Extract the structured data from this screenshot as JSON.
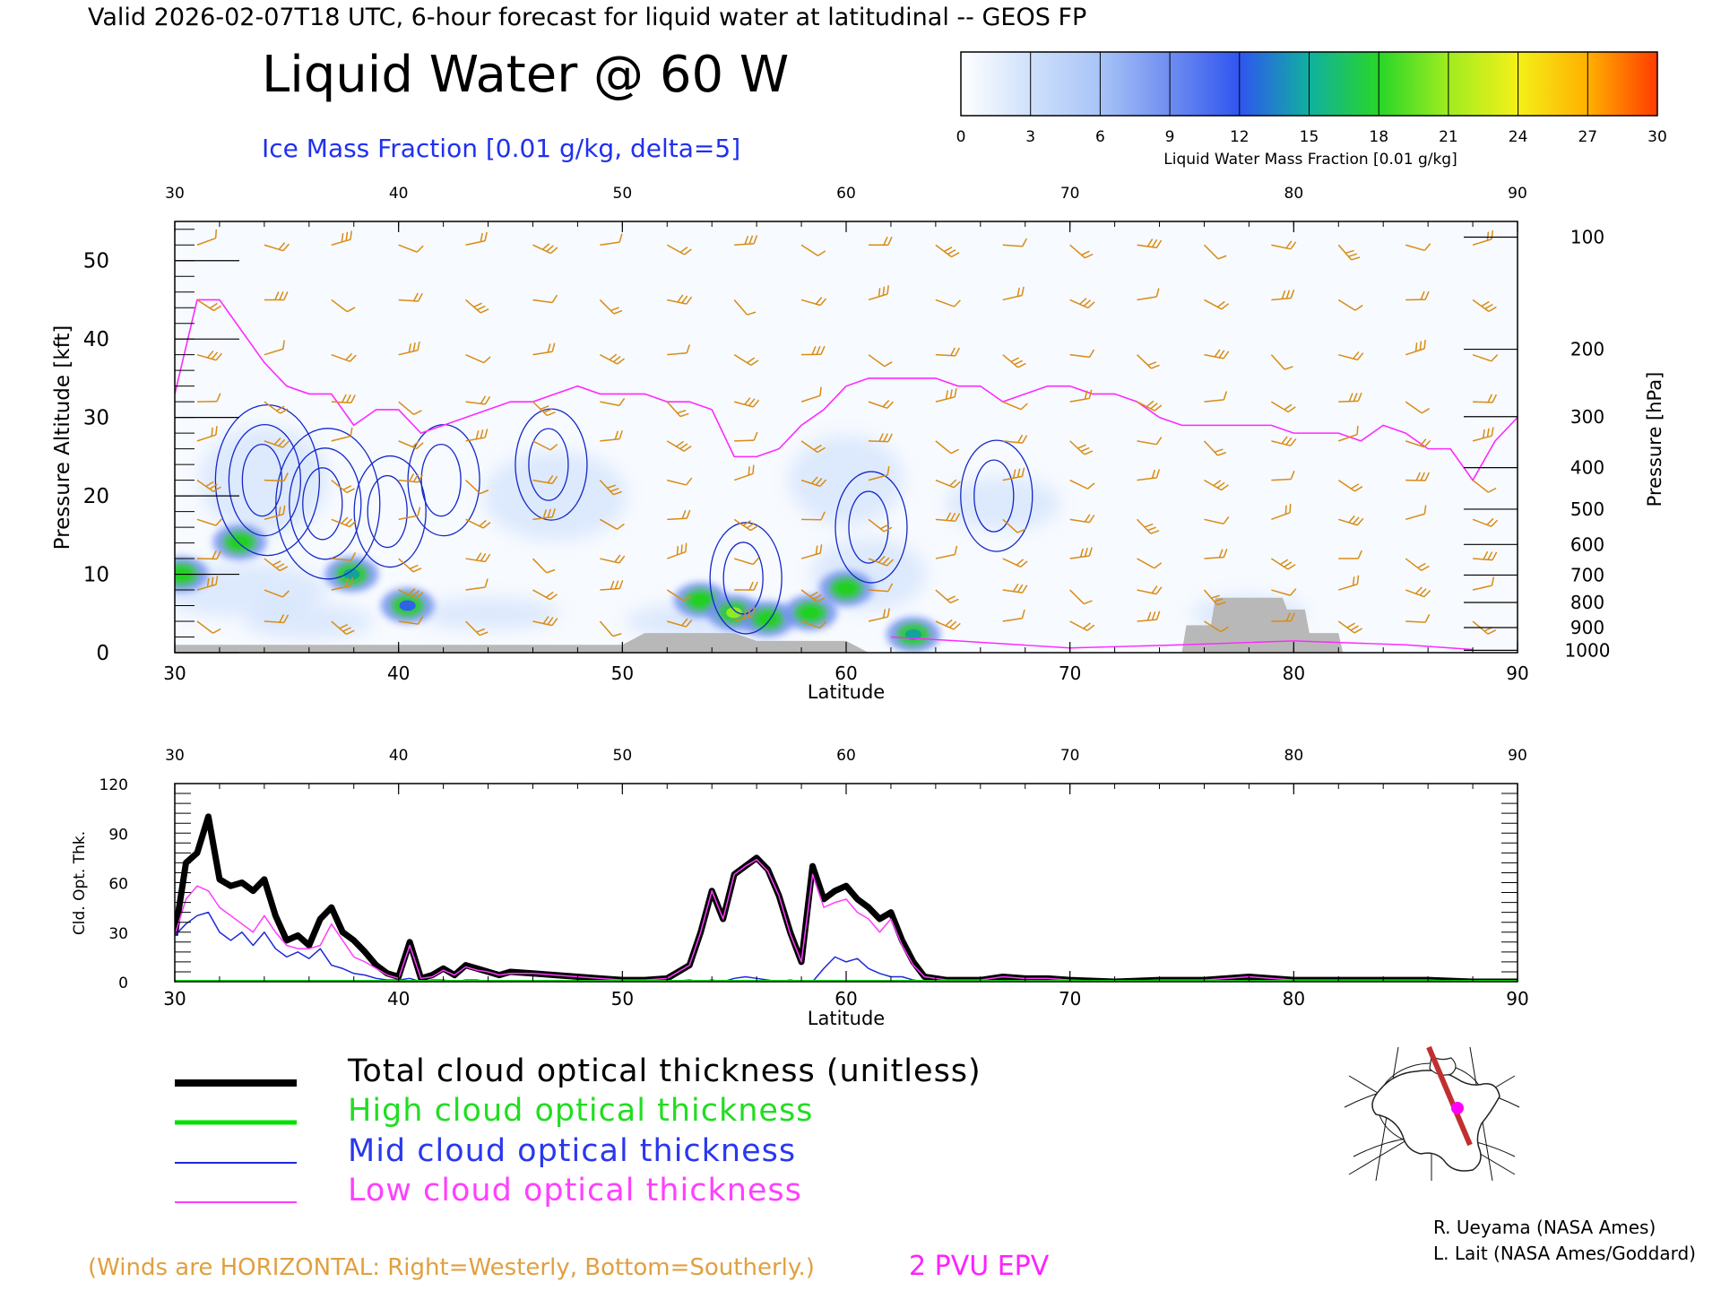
{
  "header": {
    "valid_line": "Valid 2026-02-07T18 UTC, 6-hour forecast for liquid water at latitudinal -- GEOS FP",
    "title": "Liquid Water @ 60 W",
    "subtitle": "Ice Mass Fraction [0.01 g/kg, delta=5]"
  },
  "colorbar": {
    "ticks": [
      "0",
      "3",
      "6",
      "9",
      "12",
      "15",
      "18",
      "21",
      "24",
      "27",
      "30"
    ],
    "label": "Liquid Water Mass Fraction [0.01 g/kg]",
    "colors": [
      "#f4f8ff",
      "#c8dcfb",
      "#a6c2f7",
      "#8aa4f2",
      "#2f5cf0",
      "#12a0a0",
      "#22d022",
      "#96ec22",
      "#f2f218",
      "#ffb400",
      "#ff5000"
    ]
  },
  "colors": {
    "wind_barbs": "#d98c14",
    "ice_contours": "#1428c8",
    "epv": "#ff28ff",
    "terrain": "#b8b8b8",
    "total": "#000000",
    "high": "#00e000",
    "mid": "#1e28dc",
    "low": "#ff3cff"
  },
  "chart_data": [
    {
      "type": "heatmap",
      "xlabel": "Latitude",
      "ylabel_left": "Pressure Altitude [kft]",
      "ylabel_right": "Pressure [hPa]",
      "xlim": [
        30,
        90
      ],
      "ylim": [
        0,
        55
      ],
      "x_ticks": [
        "30",
        "40",
        "50",
        "60",
        "70",
        "80",
        "90"
      ],
      "y_ticks": [
        "0",
        "10",
        "20",
        "30",
        "40",
        "50"
      ],
      "pressure_ticks": [
        {
          "label": "100",
          "kft": 53
        },
        {
          "label": "200",
          "kft": 38.7
        },
        {
          "label": "300",
          "kft": 30.1
        },
        {
          "label": "400",
          "kft": 23.6
        },
        {
          "label": "500",
          "kft": 18.3
        },
        {
          "label": "600",
          "kft": 13.8
        },
        {
          "label": "700",
          "kft": 9.9
        },
        {
          "label": "800",
          "kft": 6.4
        },
        {
          "label": "900",
          "kft": 3.2
        },
        {
          "label": "1000",
          "kft": 0.3
        }
      ],
      "liquid_water_blobs": [
        {
          "lat": 30.3,
          "kft": 10,
          "value": 19
        },
        {
          "lat": 32.9,
          "kft": 14.1,
          "value": 19
        },
        {
          "lat": 37.9,
          "kft": 10,
          "value": 16
        },
        {
          "lat": 40.4,
          "kft": 6,
          "value": 13
        },
        {
          "lat": 53.5,
          "kft": 6.7,
          "value": 18
        },
        {
          "lat": 55,
          "kft": 5.1,
          "value": 22
        },
        {
          "lat": 56.5,
          "kft": 4.3,
          "value": 19
        },
        {
          "lat": 58.4,
          "kft": 5.1,
          "value": 17
        },
        {
          "lat": 60,
          "kft": 8.2,
          "value": 19
        },
        {
          "lat": 63,
          "kft": 2.3,
          "value": 15
        }
      ],
      "ice_contour_centers": [
        {
          "lat": 33.9,
          "kft": 22
        },
        {
          "lat": 36.6,
          "kft": 19
        },
        {
          "lat": 39.5,
          "kft": 18
        },
        {
          "lat": 41.9,
          "kft": 22
        },
        {
          "lat": 46.7,
          "kft": 24
        },
        {
          "lat": 55.4,
          "kft": 9.5
        },
        {
          "lat": 61,
          "kft": 16
        },
        {
          "lat": 66.6,
          "kft": 20
        }
      ],
      "epv_2pvu_kft": [
        [
          30,
          33
        ],
        [
          31,
          45
        ],
        [
          32,
          45
        ],
        [
          33,
          41
        ],
        [
          34,
          37
        ],
        [
          35,
          34
        ],
        [
          36,
          33
        ],
        [
          37,
          33
        ],
        [
          38,
          29
        ],
        [
          39,
          31
        ],
        [
          40,
          31
        ],
        [
          41,
          28
        ],
        [
          42,
          29
        ],
        [
          43,
          30
        ],
        [
          44,
          31
        ],
        [
          45,
          32
        ],
        [
          46,
          32
        ],
        [
          47,
          33
        ],
        [
          48,
          34
        ],
        [
          49,
          33
        ],
        [
          50,
          33
        ],
        [
          51,
          33
        ],
        [
          52,
          32
        ],
        [
          53,
          32
        ],
        [
          54,
          31
        ],
        [
          55,
          25
        ],
        [
          56,
          25
        ],
        [
          57,
          26
        ],
        [
          58,
          29
        ],
        [
          59,
          31
        ],
        [
          60,
          34
        ],
        [
          61,
          35
        ],
        [
          62,
          35
        ],
        [
          63,
          35
        ],
        [
          64,
          35
        ],
        [
          65,
          34
        ],
        [
          66,
          34
        ],
        [
          67,
          32
        ],
        [
          68,
          33
        ],
        [
          69,
          34
        ],
        [
          70,
          34
        ],
        [
          71,
          33
        ],
        [
          72,
          33
        ],
        [
          73,
          32
        ],
        [
          74,
          30
        ],
        [
          75,
          29
        ],
        [
          76,
          29
        ],
        [
          77,
          29
        ],
        [
          78,
          29
        ],
        [
          79,
          29
        ],
        [
          80,
          28
        ],
        [
          81,
          28
        ],
        [
          82,
          28
        ],
        [
          83,
          27
        ],
        [
          84,
          29
        ],
        [
          85,
          28
        ],
        [
          86,
          26
        ],
        [
          87,
          26
        ],
        [
          88,
          22
        ],
        [
          89,
          27
        ],
        [
          90,
          30
        ]
      ],
      "terrain_kft": [
        [
          30,
          1
        ],
        [
          50,
          1
        ],
        [
          51,
          2.5
        ],
        [
          55,
          2.5
        ],
        [
          56,
          1.5
        ],
        [
          60,
          1.5
        ],
        [
          61,
          0
        ],
        [
          75,
          0
        ],
        [
          75.2,
          3.5
        ],
        [
          76.3,
          3.5
        ],
        [
          76.5,
          7
        ],
        [
          79.5,
          7
        ],
        [
          79.7,
          5.5
        ],
        [
          80.5,
          5.5
        ],
        [
          80.7,
          2.5
        ],
        [
          82,
          2.5
        ],
        [
          82.2,
          0
        ],
        [
          90,
          0
        ]
      ],
      "legend_note": "(Winds are HORIZONTAL: Right=Westerly, Bottom=Southerly.)",
      "epv_label": "2 PVU EPV"
    },
    {
      "type": "line",
      "xlabel": "Latitude",
      "ylabel": "Cld. Opt. Thk.",
      "xlim": [
        30,
        90
      ],
      "ylim": [
        0,
        120
      ],
      "x_ticks": [
        "30",
        "40",
        "50",
        "60",
        "70",
        "80",
        "90"
      ],
      "y_ticks": [
        "0",
        "30",
        "60",
        "90",
        "120"
      ],
      "x": [
        30,
        30.5,
        31,
        31.5,
        32,
        32.5,
        33,
        33.5,
        34,
        34.5,
        35,
        35.5,
        36,
        36.5,
        37,
        37.5,
        38,
        38.5,
        39,
        39.5,
        40,
        40.5,
        41,
        41.5,
        42,
        42.5,
        43,
        43.5,
        44,
        44.5,
        45,
        46,
        47,
        48,
        49,
        50,
        51,
        52,
        53,
        53.5,
        54,
        54.5,
        55,
        55.5,
        56,
        56.5,
        57,
        57.5,
        58,
        58.5,
        59,
        59.5,
        60,
        60.5,
        61,
        61.5,
        62,
        62.5,
        63,
        63.5,
        64,
        64.5,
        65,
        66,
        67,
        68,
        69,
        70,
        72,
        74,
        76,
        78,
        80,
        82,
        84,
        86,
        88,
        90
      ],
      "series": [
        {
          "name": "Total cloud optical thickness (unitless)",
          "values": [
            28,
            72,
            78,
            100,
            62,
            58,
            60,
            55,
            62,
            40,
            25,
            28,
            22,
            38,
            45,
            30,
            25,
            18,
            10,
            5,
            3,
            24,
            2,
            4,
            8,
            4,
            10,
            8,
            6,
            4,
            6,
            5,
            4,
            3,
            2,
            1,
            1,
            2,
            10,
            30,
            55,
            38,
            65,
            70,
            75,
            68,
            52,
            30,
            12,
            70,
            50,
            55,
            58,
            50,
            45,
            38,
            42,
            25,
            12,
            3,
            2,
            1,
            1,
            1,
            3,
            2,
            2,
            1,
            0,
            1,
            1,
            3,
            1,
            1,
            1,
            1,
            0,
            0
          ]
        },
        {
          "name": "High cloud optical thickness",
          "values": [
            0,
            0,
            0,
            0,
            0,
            0,
            0,
            0,
            0,
            0,
            0,
            0,
            0,
            0,
            0,
            0,
            0,
            0,
            0,
            0,
            0,
            0,
            0,
            0,
            0,
            0,
            0,
            0,
            0,
            0,
            0,
            0,
            0,
            0,
            0,
            0,
            0,
            0,
            0,
            0,
            0,
            0,
            0,
            0,
            0,
            0,
            0,
            0,
            0,
            0,
            0,
            0,
            0,
            0,
            0,
            0,
            0,
            0,
            0,
            0,
            0,
            0,
            0,
            0,
            0,
            0,
            0,
            0,
            0,
            0,
            0,
            0,
            0,
            0,
            0,
            0,
            0,
            0
          ]
        },
        {
          "name": "Mid cloud optical thickness",
          "values": [
            28,
            35,
            40,
            42,
            30,
            25,
            30,
            22,
            30,
            20,
            15,
            18,
            14,
            20,
            10,
            8,
            5,
            4,
            2,
            1,
            1,
            2,
            0,
            1,
            1,
            0,
            1,
            1,
            0,
            0,
            0,
            0,
            0,
            0,
            0,
            0,
            0,
            0,
            1,
            0,
            1,
            0,
            2,
            3,
            2,
            1,
            0,
            1,
            0,
            0,
            8,
            15,
            12,
            14,
            8,
            5,
            3,
            3,
            1,
            0,
            0,
            0,
            0,
            0,
            0,
            0,
            0,
            0,
            0,
            0,
            0,
            0,
            0,
            0,
            0,
            0,
            0,
            0
          ]
        },
        {
          "name": "Low cloud optical thickness",
          "values": [
            28,
            50,
            58,
            55,
            45,
            40,
            35,
            30,
            40,
            30,
            22,
            20,
            20,
            22,
            35,
            25,
            15,
            12,
            8,
            4,
            2,
            22,
            2,
            3,
            7,
            4,
            9,
            7,
            6,
            4,
            5,
            5,
            4,
            3,
            2,
            1,
            1,
            2,
            10,
            30,
            55,
            38,
            65,
            70,
            74,
            67,
            52,
            29,
            12,
            65,
            45,
            48,
            50,
            42,
            38,
            30,
            38,
            22,
            10,
            3,
            2,
            1,
            1,
            1,
            3,
            2,
            2,
            1,
            0,
            1,
            1,
            3,
            1,
            1,
            1,
            1,
            0,
            0
          ]
        }
      ]
    }
  ],
  "credits": {
    "line1": "R. Ueyama (NASA Ames)",
    "line2": "L. Lait (NASA Ames/Goddard)"
  }
}
